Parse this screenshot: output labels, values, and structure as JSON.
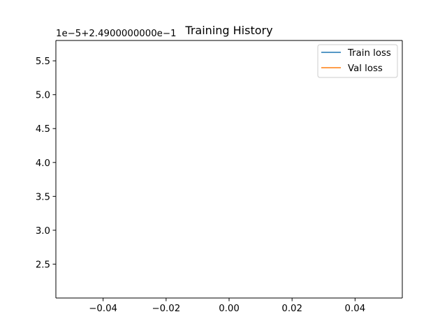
{
  "chart_data": {
    "type": "line",
    "title": "Training History",
    "xlabel": "",
    "ylabel": "",
    "y_offset_text": "1e−5+2.4900000000e−1",
    "xlim": [
      -0.055,
      0.055
    ],
    "ylim": [
      2.0,
      5.8
    ],
    "x_ticks": [
      -0.04,
      -0.02,
      0.0,
      0.02,
      0.04
    ],
    "x_tick_labels": [
      "−0.04",
      "−0.02",
      "0.00",
      "0.02",
      "0.04"
    ],
    "y_ticks": [
      2.5,
      3.0,
      3.5,
      4.0,
      4.5,
      5.0,
      5.5
    ],
    "y_tick_labels": [
      "2.5",
      "3.0",
      "3.5",
      "4.0",
      "4.5",
      "5.0",
      "5.5"
    ],
    "grid": false,
    "legend_position": "top-right",
    "series": [
      {
        "name": "Train loss",
        "color": "#1f77b4",
        "x": [],
        "y": []
      },
      {
        "name": "Val loss",
        "color": "#ff7f0e",
        "x": [],
        "y": []
      }
    ]
  }
}
